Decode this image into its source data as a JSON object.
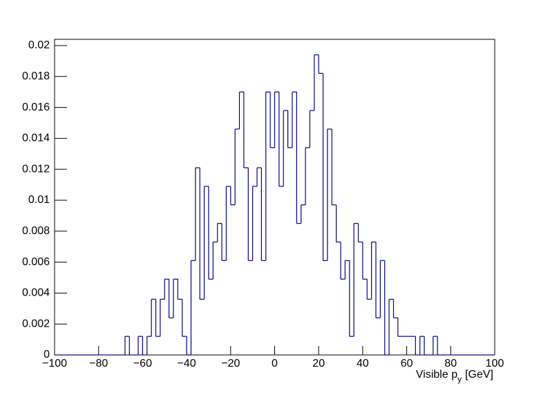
{
  "chart_data": {
    "type": "histogram",
    "xlabel": {
      "text": "Visible p",
      "subscript": "y",
      "unit": "[GeV]"
    },
    "color": "#000080",
    "bins": [
      -100,
      -98,
      -96,
      -94,
      -92,
      -90,
      -88,
      -86,
      -84,
      -82,
      -80,
      -78,
      -76,
      -74,
      -72,
      -70,
      -68,
      -66,
      -64,
      -62,
      -60,
      -58,
      -56,
      -54,
      -52,
      -50,
      -48,
      -46,
      -44,
      -42,
      -40,
      -38,
      -36,
      -34,
      -32,
      -30,
      -28,
      -26,
      -24,
      -22,
      -20,
      -18,
      -16,
      -14,
      -12,
      -10,
      -8,
      -6,
      -4,
      -2,
      0,
      2,
      4,
      6,
      8,
      10,
      12,
      14,
      16,
      18,
      20,
      22,
      24,
      26,
      28,
      30,
      32,
      34,
      36,
      38,
      40,
      42,
      44,
      46,
      48,
      50,
      52,
      54,
      56,
      58,
      60,
      62,
      64,
      66,
      68,
      70,
      72,
      74,
      76,
      78,
      80,
      82,
      84,
      86,
      88,
      90,
      92,
      94,
      96,
      98,
      100
    ],
    "values": [
      0,
      0,
      0,
      0,
      0,
      0,
      0,
      0,
      0,
      0,
      0,
      0,
      0,
      0,
      0,
      0,
      0.0012,
      0,
      0,
      0.0012,
      0,
      0.0012,
      0.0036,
      0.0012,
      0.0036,
      0.0049,
      0.0024,
      0.0049,
      0.0036,
      0.0012,
      0,
      0.0061,
      0.0121,
      0.0036,
      0.0109,
      0.0049,
      0.0073,
      0.0085,
      0.0061,
      0.0109,
      0.0097,
      0.0146,
      0.017,
      0.0121,
      0.0061,
      0.0109,
      0.0121,
      0.0061,
      0.017,
      0.0134,
      0.017,
      0.0109,
      0.0158,
      0.0134,
      0.017,
      0.0085,
      0.0097,
      0.0134,
      0.0158,
      0.0194,
      0.0182,
      0.0061,
      0.0146,
      0.0097,
      0.0073,
      0.0049,
      0.0061,
      0.0012,
      0.0085,
      0.0073,
      0.0049,
      0.0036,
      0.0073,
      0.0024,
      0.0061,
      0,
      0.0036,
      0.0024,
      0.0012,
      0.0012,
      0.0012,
      0.0012,
      0,
      0.0012,
      0,
      0,
      0.0012,
      0,
      0,
      0,
      0,
      0,
      0,
      0,
      0,
      0,
      0,
      0,
      0,
      0
    ],
    "xlim": [
      -100,
      100
    ],
    "xticks": [
      {
        "value": -100,
        "label": "−100"
      },
      {
        "value": -80,
        "label": "−80"
      },
      {
        "value": -60,
        "label": "−60"
      },
      {
        "value": -40,
        "label": "−40"
      },
      {
        "value": -20,
        "label": "−20"
      },
      0,
      20,
      40,
      60,
      80,
      100
    ],
    "ylim": [
      0,
      0.0204
    ],
    "yticks": [
      0,
      0.002,
      0.004,
      0.006,
      0.008,
      0.01,
      0.012,
      0.014,
      0.016,
      0.018,
      0.02
    ]
  }
}
